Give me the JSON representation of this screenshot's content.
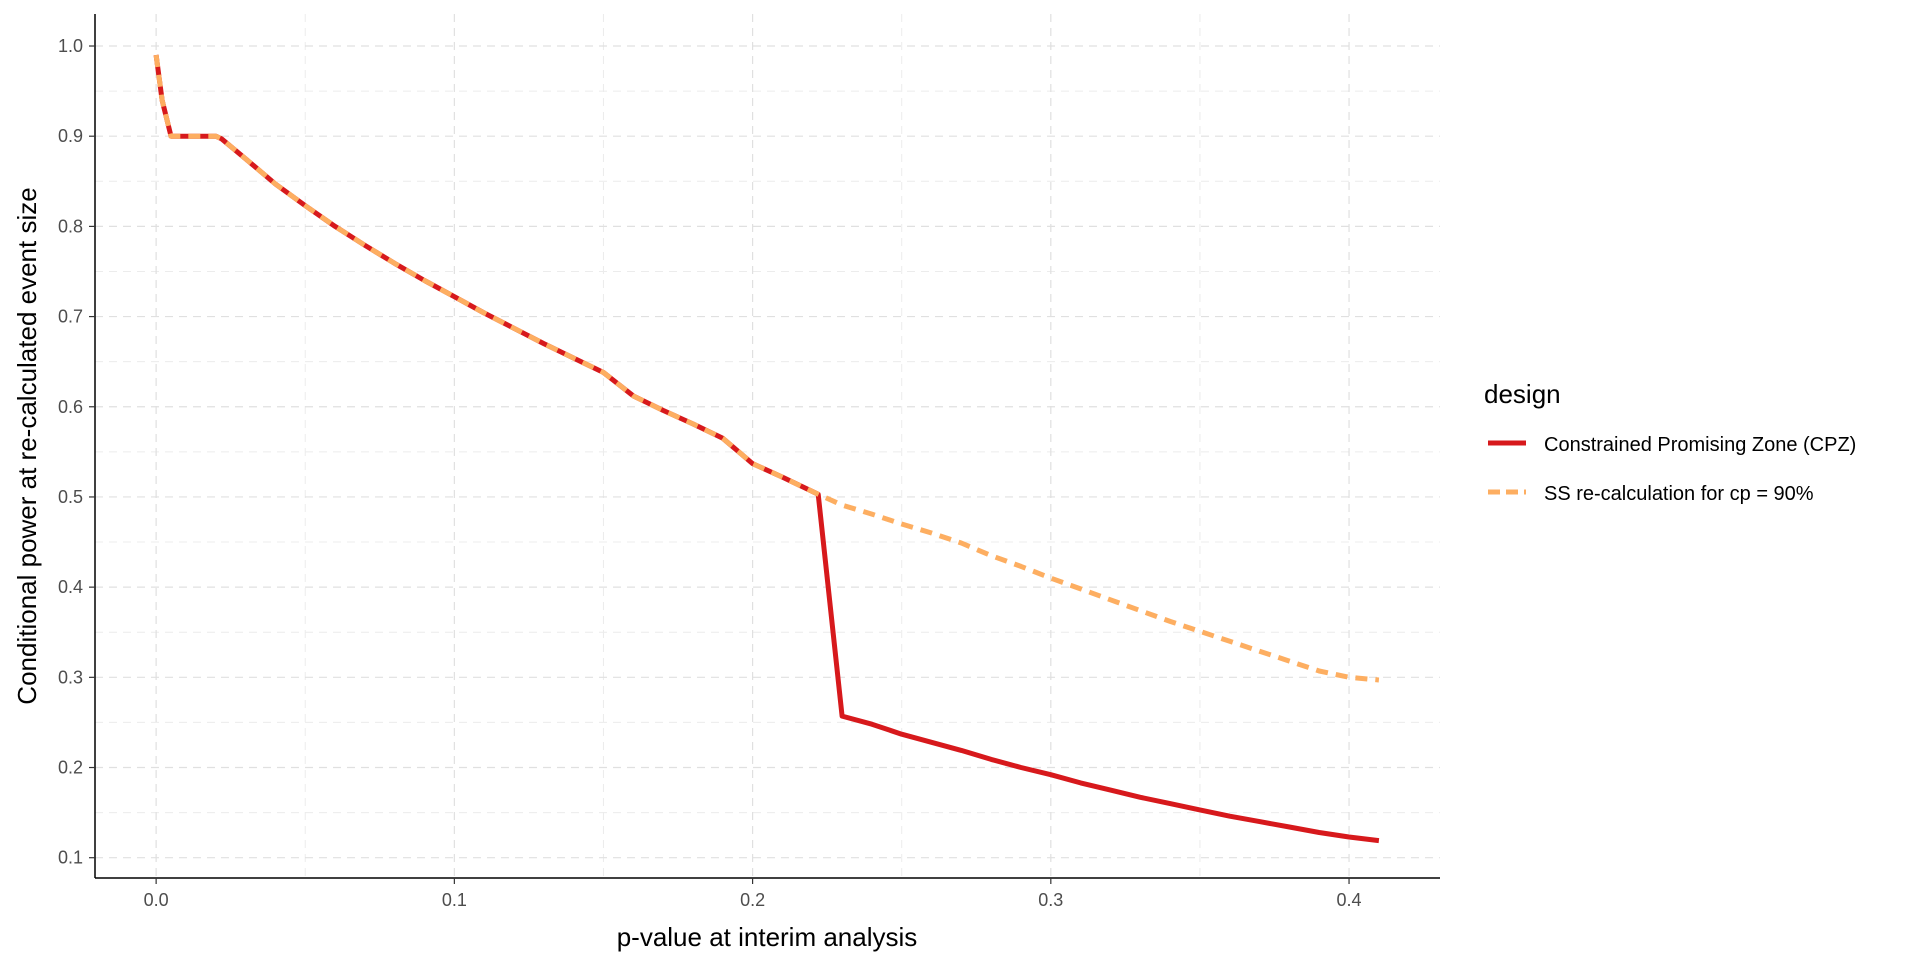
{
  "chart_data": {
    "type": "line",
    "xlabel": "p-value at interim analysis",
    "ylabel": "Conditional power at re-calculated event size",
    "xlim": [
      -0.0205,
      0.4305
    ],
    "ylim": [
      0.0775,
      1.0355
    ],
    "x_ticks": [
      0.0,
      0.1,
      0.2,
      0.3,
      0.4
    ],
    "x_tick_labels": [
      "0.0",
      "0.1",
      "0.2",
      "0.3",
      "0.4"
    ],
    "y_ticks": [
      0.1,
      0.2,
      0.3,
      0.4,
      0.5,
      0.6,
      0.7,
      0.8,
      0.9,
      1.0
    ],
    "y_tick_labels": [
      "0.1",
      "0.2",
      "0.3",
      "0.4",
      "0.5",
      "0.6",
      "0.7",
      "0.8",
      "0.9",
      "1.0"
    ],
    "grid": true,
    "legend": {
      "title": "design",
      "position": "right"
    },
    "series": [
      {
        "name": "Constrained Promising Zone (CPZ)",
        "color": "#d7191c",
        "dash": "solid",
        "points": [
          [
            0.0,
            0.99
          ],
          [
            0.002,
            0.94
          ],
          [
            0.005,
            0.9
          ],
          [
            0.01,
            0.9
          ],
          [
            0.015,
            0.9
          ],
          [
            0.02,
            0.9
          ],
          [
            0.022,
            0.897
          ],
          [
            0.03,
            0.875
          ],
          [
            0.04,
            0.847
          ],
          [
            0.05,
            0.823
          ],
          [
            0.06,
            0.8
          ],
          [
            0.07,
            0.779
          ],
          [
            0.08,
            0.759
          ],
          [
            0.09,
            0.74
          ],
          [
            0.1,
            0.722
          ],
          [
            0.11,
            0.704
          ],
          [
            0.12,
            0.687
          ],
          [
            0.13,
            0.67
          ],
          [
            0.14,
            0.654
          ],
          [
            0.15,
            0.638
          ],
          [
            0.16,
            0.612
          ],
          [
            0.17,
            0.596
          ],
          [
            0.18,
            0.581
          ],
          [
            0.19,
            0.565
          ],
          [
            0.2,
            0.537
          ],
          [
            0.21,
            0.522
          ],
          [
            0.222,
            0.503
          ],
          [
            0.23,
            0.257
          ],
          [
            0.24,
            0.248
          ],
          [
            0.25,
            0.237
          ],
          [
            0.26,
            0.228
          ],
          [
            0.27,
            0.219
          ],
          [
            0.28,
            0.209
          ],
          [
            0.29,
            0.2
          ],
          [
            0.3,
            0.192
          ],
          [
            0.31,
            0.183
          ],
          [
            0.32,
            0.175
          ],
          [
            0.33,
            0.167
          ],
          [
            0.34,
            0.16
          ],
          [
            0.35,
            0.153
          ],
          [
            0.36,
            0.146
          ],
          [
            0.37,
            0.14
          ],
          [
            0.38,
            0.134
          ],
          [
            0.39,
            0.128
          ],
          [
            0.4,
            0.123
          ],
          [
            0.41,
            0.119
          ]
        ]
      },
      {
        "name": "SS re-calculation for cp = 90%",
        "color": "#fdae61",
        "dash": "dashed",
        "points": [
          [
            0.0,
            0.99
          ],
          [
            0.002,
            0.94
          ],
          [
            0.005,
            0.9
          ],
          [
            0.01,
            0.9
          ],
          [
            0.015,
            0.9
          ],
          [
            0.02,
            0.9
          ],
          [
            0.022,
            0.897
          ],
          [
            0.03,
            0.875
          ],
          [
            0.04,
            0.847
          ],
          [
            0.05,
            0.823
          ],
          [
            0.06,
            0.8
          ],
          [
            0.07,
            0.779
          ],
          [
            0.08,
            0.759
          ],
          [
            0.09,
            0.74
          ],
          [
            0.1,
            0.722
          ],
          [
            0.11,
            0.704
          ],
          [
            0.12,
            0.687
          ],
          [
            0.13,
            0.67
          ],
          [
            0.14,
            0.654
          ],
          [
            0.15,
            0.638
          ],
          [
            0.16,
            0.612
          ],
          [
            0.17,
            0.596
          ],
          [
            0.18,
            0.581
          ],
          [
            0.19,
            0.565
          ],
          [
            0.2,
            0.537
          ],
          [
            0.21,
            0.522
          ],
          [
            0.222,
            0.503
          ],
          [
            0.23,
            0.491
          ],
          [
            0.24,
            0.481
          ],
          [
            0.25,
            0.47
          ],
          [
            0.26,
            0.46
          ],
          [
            0.27,
            0.449
          ],
          [
            0.28,
            0.435
          ],
          [
            0.29,
            0.423
          ],
          [
            0.3,
            0.41
          ],
          [
            0.31,
            0.398
          ],
          [
            0.32,
            0.386
          ],
          [
            0.33,
            0.374
          ],
          [
            0.34,
            0.362
          ],
          [
            0.35,
            0.351
          ],
          [
            0.36,
            0.34
          ],
          [
            0.37,
            0.329
          ],
          [
            0.38,
            0.318
          ],
          [
            0.39,
            0.307
          ],
          [
            0.4,
            0.3
          ],
          [
            0.41,
            0.297
          ]
        ]
      }
    ]
  }
}
